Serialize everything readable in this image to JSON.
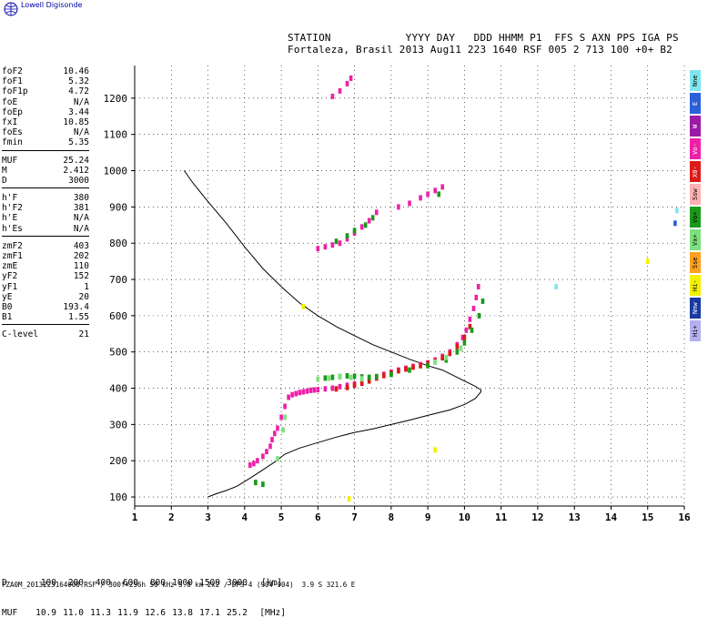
{
  "brand": {
    "name": "Lowell Digisonde"
  },
  "header": {
    "line1": "STATION            YYYY DAY   DDD HHMM P1  FFS S AXN PPS IGA PS",
    "line2": "Fortaleza, Brasil 2013 Aug11 223 1640 RSF 005 2 713 100 +0+ B2"
  },
  "parameters": [
    {
      "group": [
        {
          "name": "foF2",
          "value": "10.46"
        },
        {
          "name": "foF1",
          "value": "5.32"
        },
        {
          "name": "foF1p",
          "value": "4.72"
        },
        {
          "name": "foE",
          "value": "N/A"
        },
        {
          "name": "foEp",
          "value": "3.44"
        },
        {
          "name": "fxI",
          "value": "10.85"
        },
        {
          "name": "foEs",
          "value": "N/A"
        },
        {
          "name": "fmin",
          "value": "5.35"
        }
      ]
    },
    {
      "group": [
        {
          "name": "MUF",
          "value": "25.24"
        },
        {
          "name": "M",
          "value": "2.412"
        },
        {
          "name": "D",
          "value": "3000"
        }
      ]
    },
    {
      "group": [
        {
          "name": "h'F",
          "value": "380"
        },
        {
          "name": "h'F2",
          "value": "381"
        },
        {
          "name": "h'E",
          "value": "N/A"
        },
        {
          "name": "h'Es",
          "value": "N/A"
        }
      ]
    },
    {
      "group": [
        {
          "name": "zmF2",
          "value": "403"
        },
        {
          "name": "zmF1",
          "value": "202"
        },
        {
          "name": "zmE",
          "value": "110"
        },
        {
          "name": "yF2",
          "value": "152"
        },
        {
          "name": "yF1",
          "value": "1"
        },
        {
          "name": "yE",
          "value": "20"
        },
        {
          "name": "B0",
          "value": "193.4"
        },
        {
          "name": "B1",
          "value": "1.55"
        }
      ]
    },
    {
      "group": [
        {
          "name": "C-level",
          "value": "21"
        }
      ]
    }
  ],
  "legend": [
    {
      "label": "Nne",
      "color": "#7fe6f0",
      "text_color": "#000000"
    },
    {
      "label": "E",
      "color": "#2a60d8",
      "text_color": "#ffffff"
    },
    {
      "label": "W",
      "color": "#9c1aa8",
      "text_color": "#ffffff"
    },
    {
      "label": "Vo-",
      "color": "#ee20a8",
      "text_color": "#ffffff"
    },
    {
      "label": "X0-",
      "color": "#dd1a1a",
      "text_color": "#ffffff"
    },
    {
      "label": "Ssw",
      "color": "#ffb0b0",
      "text_color": "#000000"
    },
    {
      "label": "Vo+",
      "color": "#1a9a1a",
      "text_color": "#000000"
    },
    {
      "label": "Vx+",
      "color": "#7ee07e",
      "text_color": "#000000"
    },
    {
      "label": "Sse",
      "color": "#ffa020",
      "text_color": "#000000"
    },
    {
      "label": "Hi-",
      "color": "#f4f000",
      "text_color": "#000000"
    },
    {
      "label": "Nnw",
      "color": "#1a3aa0",
      "text_color": "#ffffff"
    },
    {
      "label": "Hi+",
      "color": "#b4b0f0",
      "text_color": "#000000"
    }
  ],
  "footer": {
    "row1_label": "D",
    "row1": [
      "100",
      "200",
      "400",
      "600",
      "800",
      "1000",
      "1500",
      "3000"
    ],
    "row1_unit": "[km]",
    "row2_label": "MUF",
    "row2": [
      "10.9",
      "11.0",
      "11.3",
      "11.9",
      "12.6",
      "13.8",
      "17.1",
      "25.2"
    ],
    "row2_unit": "[MHz]",
    "filename": "FZA0M_2013223164000.RSF / 300f×256h 50 kHz 5.0 km 2x2 / DPS-4 (904-904)  3.9 S 321.6 E"
  },
  "chart_data": {
    "type": "scatter",
    "xlim": [
      1,
      16
    ],
    "ylim": [
      75,
      1290
    ],
    "x_ticks": [
      "1",
      "2",
      "3",
      "4",
      "5",
      "6",
      "7",
      "8",
      "9",
      "10",
      "11",
      "12",
      "13",
      "14",
      "15",
      "16"
    ],
    "y_ticks": [
      "100",
      "200",
      "300",
      "400",
      "500",
      "600",
      "700",
      "800",
      "900",
      "1000",
      "1100",
      "1200"
    ],
    "grid": true,
    "profile_curve": {
      "name": "",
      "color": "#000000",
      "x": [
        2.35,
        2.6,
        3.0,
        3.5,
        4.0,
        4.5,
        5.0,
        5.5,
        6.0,
        6.5,
        7.0,
        7.5,
        8.0,
        8.5,
        9.0,
        9.4,
        9.8,
        10.1,
        10.3,
        10.45,
        10.45,
        10.3,
        10.0,
        9.6,
        9.0,
        8.5,
        8.0,
        7.5,
        7.0,
        6.5,
        6.0,
        5.5,
        5.1,
        4.8,
        4.5,
        4.2,
        3.8,
        3.5,
        3.2,
        3.0
      ],
      "y": [
        1000,
        965,
        915,
        855,
        790,
        730,
        680,
        635,
        600,
        570,
        545,
        520,
        500,
        480,
        462,
        450,
        430,
        415,
        405,
        395,
        390,
        372,
        355,
        340,
        325,
        312,
        300,
        288,
        278,
        265,
        250,
        235,
        218,
        195,
        175,
        155,
        130,
        118,
        108,
        100
      ]
    },
    "traces": [
      {
        "name": "Vo-",
        "color": "#ee20a8",
        "x": [
          4.15,
          4.25,
          4.35,
          4.5,
          4.6,
          4.7,
          4.75,
          4.82,
          4.9,
          5.0,
          5.1,
          5.2,
          5.3,
          5.4,
          5.5,
          5.6,
          5.7,
          5.8,
          5.9,
          6.0,
          6.2,
          6.4,
          6.6,
          6.8,
          7.0,
          7.2,
          7.4,
          7.6,
          7.8,
          8.0,
          8.2,
          8.4,
          8.6,
          8.8,
          9.0,
          9.2,
          9.4,
          9.6,
          9.8,
          9.95,
          10.05,
          10.15,
          10.25,
          10.32,
          10.38
        ],
        "y": [
          188,
          192,
          200,
          212,
          225,
          240,
          258,
          275,
          290,
          320,
          350,
          375,
          382,
          385,
          388,
          390,
          392,
          394,
          395,
          396,
          398,
          400,
          404,
          408,
          412,
          418,
          425,
          430,
          438,
          444,
          450,
          455,
          460,
          465,
          470,
          478,
          488,
          500,
          520,
          540,
          560,
          590,
          620,
          650,
          680
        ]
      },
      {
        "name": "X0-",
        "color": "#dd1a1a",
        "x": [
          6.5,
          6.8,
          7.0,
          7.2,
          7.4,
          7.6,
          7.8,
          8.0,
          8.2,
          8.4,
          8.6,
          8.8,
          9.0,
          9.2,
          9.4,
          9.6,
          9.8,
          10.0,
          10.15
        ],
        "y": [
          398,
          402,
          408,
          414,
          420,
          428,
          435,
          442,
          448,
          453,
          458,
          462,
          468,
          475,
          484,
          496,
          515,
          540,
          570
        ]
      },
      {
        "name": "Vo+",
        "color": "#1a9a1a",
        "x": [
          4.3,
          4.5,
          6.2,
          6.4,
          6.6,
          6.8,
          7.0,
          7.2,
          7.4,
          7.6,
          8.0,
          8.5,
          9.0,
          9.5,
          9.8,
          10.0,
          10.2,
          10.4,
          10.5
        ],
        "y": [
          140,
          135,
          428,
          430,
          432,
          434,
          433,
          431,
          430,
          432,
          438,
          450,
          462,
          478,
          500,
          525,
          560,
          600,
          640
        ]
      },
      {
        "name": "Vx+",
        "color": "#7ee07e",
        "x": [
          4.9,
          5.05,
          5.1,
          6.0,
          6.3,
          6.6,
          6.9,
          7.2,
          9.2,
          9.5,
          9.9
        ],
        "y": [
          205,
          285,
          320,
          425,
          428,
          432,
          430,
          426,
          472,
          485,
          510
        ]
      },
      {
        "name": "Vo- echoes",
        "color": "#ee20a8",
        "x": [
          6.0,
          6.2,
          6.4,
          6.6,
          6.8,
          7.0,
          7.2,
          7.4,
          7.6,
          8.2,
          8.5,
          8.8,
          9.0,
          9.2,
          9.4,
          6.4,
          6.6,
          6.8,
          6.9
        ],
        "y": [
          785,
          790,
          795,
          800,
          812,
          828,
          845,
          862,
          885,
          900,
          910,
          925,
          935,
          945,
          955,
          1205,
          1220,
          1240,
          1255
        ]
      },
      {
        "name": "Vo+ echoes",
        "color": "#1a9a1a",
        "x": [
          6.5,
          6.8,
          7.0,
          7.3,
          7.5,
          9.3
        ],
        "y": [
          805,
          820,
          835,
          850,
          870,
          935
        ]
      },
      {
        "name": "Hi- noise",
        "color": "#f4f000",
        "x": [
          5.6,
          15.0,
          9.2,
          6.85
        ],
        "y": [
          625,
          750,
          230,
          95
        ]
      },
      {
        "name": "Nne noise",
        "color": "#7fe6f0",
        "x": [
          12.5,
          15.8
        ],
        "y": [
          680,
          890
        ]
      },
      {
        "name": "E noise",
        "color": "#2a60d8",
        "x": [
          15.75
        ],
        "y": [
          855
        ]
      }
    ]
  }
}
